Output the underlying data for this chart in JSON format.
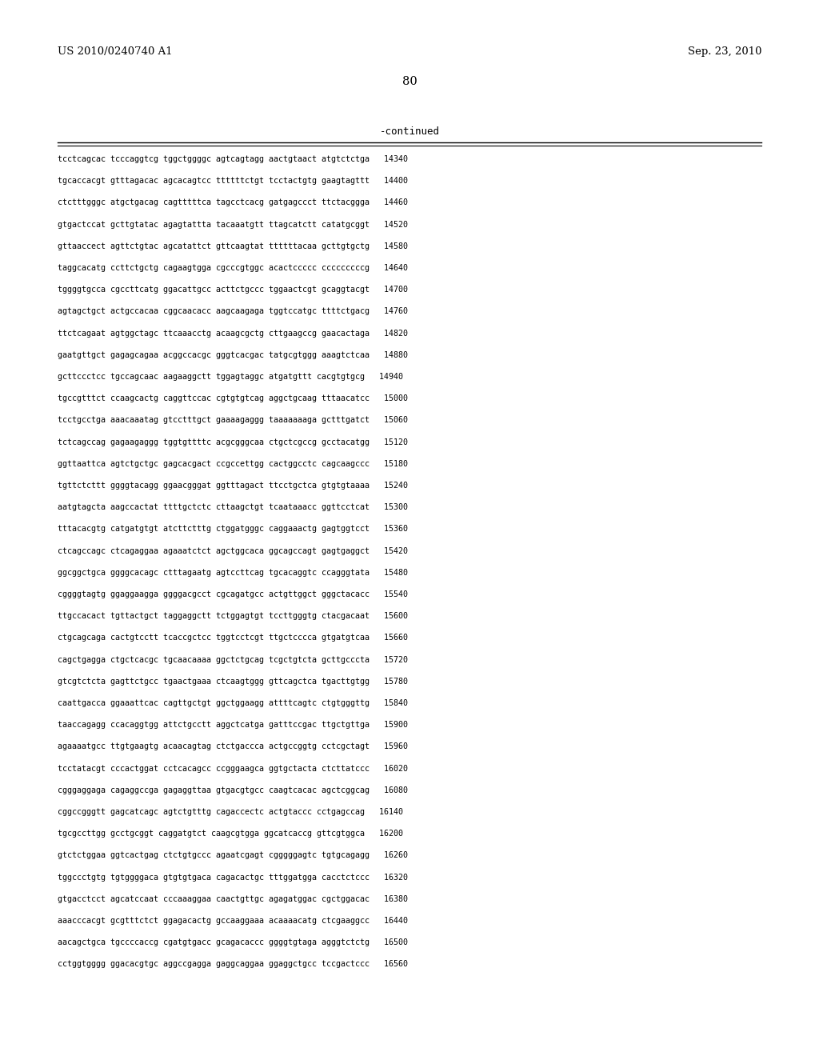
{
  "header_left": "US 2010/0240740 A1",
  "header_right": "Sep. 23, 2010",
  "page_number": "80",
  "continued_label": "-continued",
  "background_color": "#ffffff",
  "text_color": "#000000",
  "font_size_header": 9.5,
  "font_size_page": 10.5,
  "font_size_continued": 9.0,
  "font_size_sequence": 7.2,
  "sequence_lines": [
    "tcctcagcac tcccaggtcg tggctggggc agtcagtagg aactgtaact atgtctctga   14340",
    "tgcaccacgt gtttagacac agcacagtcc ttttttctgt tcctactgtg gaagtagttt   14400",
    "ctctttgggc atgctgacag cagtttttca tagcctcacg gatgagccct ttctacggga   14460",
    "gtgactccat gcttgtatac agagtattta tacaaatgtt ttagcatctt catatgcggt   14520",
    "gttaaccect agttctgtac agcatattct gttcaagtat ttttttacaa gcttgtgctg   14580",
    "taggcacatg ccttctgctg cagaagtgga cgcccgtggc acactccccc cccccccccg   14640",
    "tggggtgcca cgccttcatg ggacattgcc acttctgccc tggaactcgt gcaggtacgt   14700",
    "agtagctgct actgccacaa cggcaacacc aagcaagaga tggtccatgc ttttctgacg   14760",
    "ttctcagaat agtggctagc ttcaaacctg acaagcgctg cttgaagccg gaacactaga   14820",
    "gaatgttgct gagagcagaa acggccacgc gggtcacgac tatgcgtggg aaagtctcaa   14880",
    "gcttccctcc tgccagcaac aagaaggctt tggagtaggc atgatgttt cacgtgtgcg   14940",
    "tgccgtttct ccaagcactg caggttccac cgtgtgtcag aggctgcaag tttaacatcc   15000",
    "tcctgcctga aaacaaatag gtcctttgct gaaaagaggg taaaaaaaga gctttgatct   15060",
    "tctcagccag gagaagaggg tggtgttttc acgcgggcaa ctgctcgccg gcctacatgg   15120",
    "ggttaattca agtctgctgc gagcacgact ccgccettgg cactggcctc cagcaagccc   15180",
    "tgttctcttt ggggtacagg ggaacgggat ggtttagact ttcctgctca gtgtgtaaaa   15240",
    "aatgtagcta aagccactat ttttgctctc cttaagctgt tcaataaacc ggttcctcat   15300",
    "tttacacgtg catgatgtgt atcttctttg ctggatgggc caggaaactg gagtggtcct   15360",
    "ctcagccagc ctcagaggaa agaaatctct agctggcaca ggcagccagt gagtgaggct   15420",
    "ggcggctgca ggggcacagc ctttagaatg agtccttcag tgcacaggtc ccagggtata   15480",
    "cggggtagtg ggaggaagga ggggacgcct cgcagatgcc actgttggct gggctacacc   15540",
    "ttgccacact tgttactgct taggaggctt tctggagtgt tccttgggtg ctacgacaat   15600",
    "ctgcagcaga cactgtcctt tcaccgctcc tggtcctcgt ttgctcccca gtgatgtcaa   15660",
    "cagctgagga ctgctcacgc tgcaacaaaa ggctctgcag tcgctgtcta gcttgcccta   15720",
    "gtcgtctcta gagttctgcc tgaactgaaa ctcaagtggg gttcagctca tgacttgtgg   15780",
    "caattgacca ggaaattcac cagttgctgt ggctggaagg attttcagtc ctgtgggttg   15840",
    "taaccagagg ccacaggtgg attctgcctt aggctcatga gatttccgac ttgctgttga   15900",
    "agaaaatgcc ttgtgaagtg acaacagtag ctctgaccca actgccggtg cctcgctagt   15960",
    "tcctatacgt cccactggat cctcacagcc ccgggaagca ggtgctacta ctcttatccc   16020",
    "cgggaggaga cagaggccga gagaggttaa gtgacgtgcc caagtcacac agctcggcag   16080",
    "cggccgggtt gagcatcagc agtctgtttg cagaccectc actgtaccc cctgagccag   16140",
    "tgcgccttgg gcctgcggt caggatgtct caagcgtgga ggcatcaccg gttcgtggca   16200",
    "gtctctggaa ggtcactgag ctctgtgccc agaatcgagt cgggggagtc tgtgcagagg   16260",
    "tggccctgtg tgtggggaca gtgtgtgaca cagacactgc tttggatgga cacctctccc   16320",
    "gtgacctcct agcatccaat cccaaaggaa caactgttgc agagatggac cgctggacac   16380",
    "aaacccacgt gcgtttctct ggagacactg gccaaggaaa acaaaacatg ctcgaaggcc   16440",
    "aacagctgca tgccccaccg cgatgtgacc gcagacaccc ggggtgtaga agggtctctg   16500",
    "cctggtgggg ggacacgtgc aggccgagga gaggcaggaa ggaggctgcc tccgactccc   16560"
  ]
}
